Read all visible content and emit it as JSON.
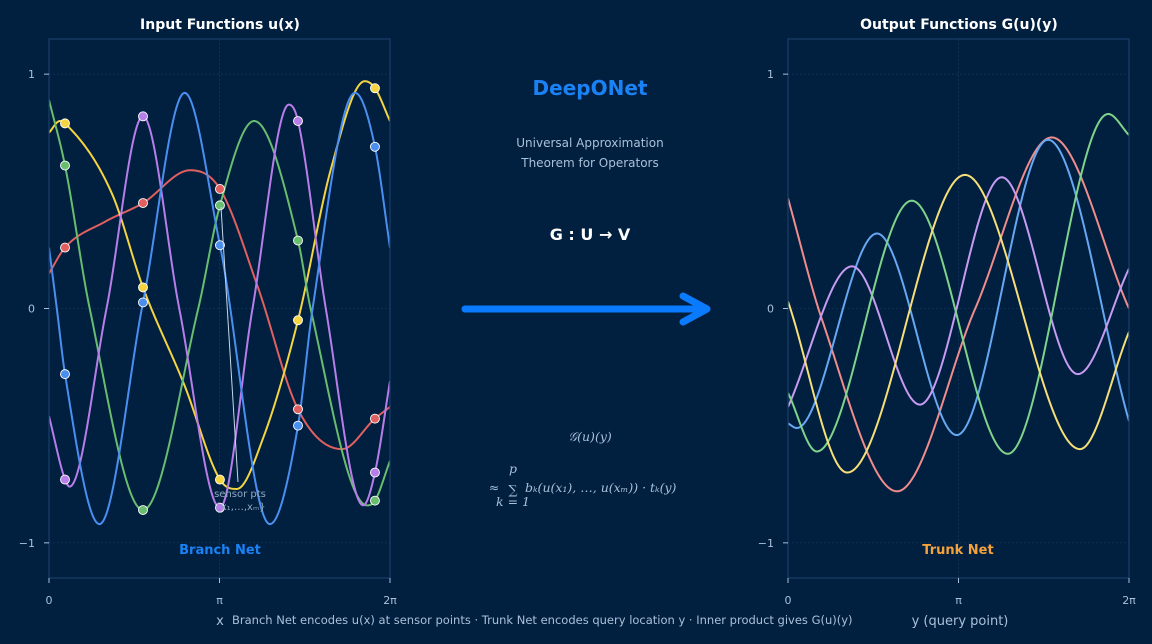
{
  "center": {
    "title": "DeepONet",
    "subtitle_lines": [
      "Universal Approximation",
      "Theorem for Operators"
    ],
    "mapping": "G  :  U → V",
    "formula_lhs": "𝒢(u)(y)",
    "formula_approx": "≈",
    "formula_sigma": "∑",
    "formula_upper": "p",
    "formula_lower": "k = 1",
    "formula_body": "bₖ(u(x₁), …, u(xₘ)) · tₖ(y)",
    "arrow_color": "#0a7aff"
  },
  "caption": "Branch Net encodes u(x) at sensor points  ·  Trunk Net encodes query location y  ·  Inner product gives G(u)(y)",
  "chart_data": [
    {
      "type": "line",
      "title": "Input Functions  u(x)",
      "xlabel": "x",
      "ylabel": "",
      "xlim": [
        0,
        6.2832
      ],
      "ylim": [
        -1.15,
        1.15
      ],
      "grid": true,
      "xticks": [
        {
          "value": 0,
          "label": "0"
        },
        {
          "value": 3.1416,
          "label": "π"
        },
        {
          "value": 6.2832,
          "label": "2π"
        }
      ],
      "yticks": [
        {
          "value": 1,
          "label": "1"
        },
        {
          "value": 0,
          "label": "0"
        },
        {
          "value": -1,
          "label": "−1"
        }
      ],
      "panel_label": "Branch Net",
      "panel_label_color": "#1a82f5",
      "sensor_note": [
        "sensor pts",
        "{x₁,…,xₘ}"
      ],
      "sensor_x": [
        0.295,
        1.732,
        3.15,
        4.588,
        6.006
      ],
      "series": [
        {
          "color": "#e0605f",
          "points": [
            [
              0,
              0.15
            ],
            [
              1.03,
              0.37
            ],
            [
              2.6,
              0.59
            ],
            [
              3.85,
              0.09
            ],
            [
              5.4,
              -0.6
            ],
            [
              6.283,
              -0.42
            ]
          ],
          "sensor_values": [
            0.26,
            0.45,
            0.51,
            -0.43,
            -0.47
          ]
        },
        {
          "color": "#f5d442",
          "points": [
            [
              0,
              0.75
            ],
            [
              0.2,
              0.8
            ],
            [
              1.16,
              0.49
            ],
            [
              2.5,
              -0.33
            ],
            [
              3.46,
              -0.77
            ],
            [
              3.95,
              -0.55
            ],
            [
              5.2,
              0.6
            ],
            [
              5.82,
              0.97
            ],
            [
              6.283,
              0.8
            ]
          ],
          "sensor_values": [
            0.79,
            0.09,
            -0.73,
            -0.05,
            0.94
          ]
        },
        {
          "color": "#68bd6e",
          "points": [
            [
              0,
              0.89
            ],
            [
              0.75,
              0
            ],
            [
              2.75,
              0
            ],
            [
              3.78,
              0.8
            ],
            [
              4.82,
              0
            ],
            [
              5.86,
              -0.84
            ],
            [
              6.283,
              -0.65
            ]
          ],
          "sensor_values": [
            0.61,
            -0.86,
            0.44,
            0.29,
            -0.82
          ]
        },
        {
          "color": "#b77ee9",
          "points": [
            [
              0,
              -0.46
            ],
            [
              0.38,
              -0.76
            ],
            [
              1.06,
              0
            ],
            [
              2.4,
              0
            ],
            [
              3.75,
              0
            ],
            [
              4.42,
              0.87
            ],
            [
              5.1,
              0
            ],
            [
              5.79,
              -0.84
            ],
            [
              6.283,
              -0.31
            ]
          ],
          "sensor_values": [
            -0.73,
            0.82,
            -0.85,
            0.8,
            -0.7
          ]
        },
        {
          "color": "#4a8ff0",
          "points": [
            [
              0,
              0.26
            ],
            [
              0.144,
              0
            ],
            [
              0.93,
              -0.92
            ],
            [
              2.5,
              0.92
            ],
            [
              4.07,
              -0.92
            ],
            [
              4.857,
              0
            ],
            [
              5.64,
              0.92
            ],
            [
              6.283,
              0.26
            ]
          ],
          "sensor_values": [
            -0.28,
            0.026,
            0.27,
            -0.5,
            0.69
          ]
        }
      ]
    },
    {
      "type": "line",
      "title": "Output Functions  G(u)(y)",
      "xlabel": "y (query point)",
      "ylabel": "",
      "xlim": [
        0,
        6.2832
      ],
      "ylim": [
        -1.15,
        1.15
      ],
      "grid": true,
      "xticks": [
        {
          "value": 0,
          "label": "0"
        },
        {
          "value": 3.1416,
          "label": "π"
        },
        {
          "value": 6.2832,
          "label": "2π"
        }
      ],
      "yticks": [
        {
          "value": 1,
          "label": "1"
        },
        {
          "value": 0,
          "label": "0"
        },
        {
          "value": -1,
          "label": "−1"
        }
      ],
      "panel_label": "Trunk Net",
      "panel_label_color": "#f5a23c",
      "series": [
        {
          "color": "#ef8c8c",
          "points": [
            [
              0,
              0.47
            ],
            [
              0.63,
              -0.05
            ],
            [
              2.01,
              -0.78
            ],
            [
              3.45,
              0.0
            ],
            [
              4.86,
              0.73
            ],
            [
              6.283,
              0.0
            ]
          ]
        },
        {
          "color": "#66a8f2",
          "points": [
            [
              0,
              -0.49
            ],
            [
              0.16,
              -0.51
            ],
            [
              1.64,
              0.32
            ],
            [
              3.11,
              -0.54
            ],
            [
              4.79,
              0.72
            ],
            [
              6.283,
              -0.48
            ]
          ]
        },
        {
          "color": "#c69bf2",
          "points": [
            [
              0,
              -0.42
            ],
            [
              1.18,
              0.18
            ],
            [
              2.43,
              -0.41
            ],
            [
              3.94,
              0.56
            ],
            [
              5.34,
              -0.28
            ],
            [
              6.283,
              0.17
            ]
          ]
        },
        {
          "color": "#7ed48a",
          "points": [
            [
              0,
              -0.36
            ],
            [
              0.53,
              -0.61
            ],
            [
              2.28,
              0.46
            ],
            [
              4.05,
              -0.62
            ],
            [
              5.9,
              0.83
            ],
            [
              6.283,
              0.74
            ]
          ]
        },
        {
          "color": "#f6df78",
          "points": [
            [
              0,
              0.03
            ],
            [
              1.09,
              -0.7
            ],
            [
              3.26,
              0.57
            ],
            [
              5.38,
              -0.6
            ],
            [
              6.283,
              -0.1
            ]
          ]
        }
      ]
    }
  ]
}
